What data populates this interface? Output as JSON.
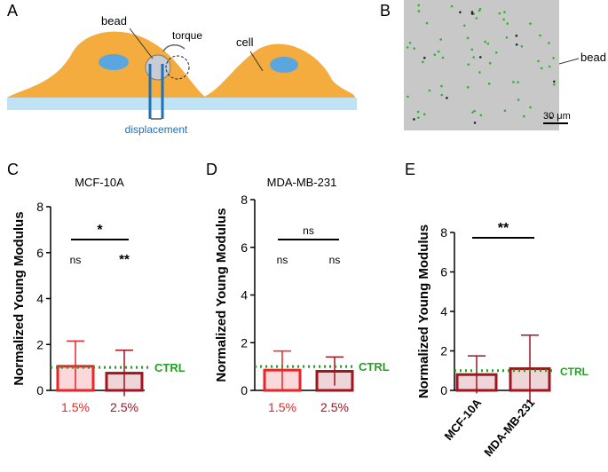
{
  "panel_a": {
    "label": "A",
    "bead": "bead",
    "torque": "torque",
    "cell": "cell",
    "displacement": "displacement"
  },
  "panel_b": {
    "label": "B",
    "bead": "bead",
    "scale": "30 μm"
  },
  "chart_data": [
    {
      "type": "bar",
      "panel": "C",
      "title": "MCF-10A",
      "y_label": "Normalized Young Modulus",
      "categories": [
        "1.5%",
        "2.5%"
      ],
      "values": [
        1.05,
        0.75
      ],
      "errors": [
        1.1,
        1.0
      ],
      "colors": [
        "#e8262a",
        "#a01520"
      ],
      "annotations": [
        "ns",
        "**"
      ],
      "bracket_label": "*",
      "reference_line": {
        "value": 1,
        "label": "CTRL",
        "color": "#22a022"
      },
      "ylim": [
        0,
        8
      ],
      "yticks": [
        0,
        2,
        4,
        6,
        8
      ]
    },
    {
      "type": "bar",
      "panel": "D",
      "title": "MDA-MB-231",
      "y_label": "Normalized Young Modulus",
      "categories": [
        "1.5%",
        "2.5%"
      ],
      "values": [
        0.85,
        0.8
      ],
      "errors": [
        0.8,
        0.6
      ],
      "colors": [
        "#e8262a",
        "#a01520"
      ],
      "annotations": [
        "ns",
        "ns"
      ],
      "bracket_label": "ns",
      "reference_line": {
        "value": 1,
        "label": "CTRL",
        "color": "#22a022"
      },
      "ylim": [
        0,
        8
      ],
      "yticks": [
        0,
        2,
        4,
        6,
        8
      ]
    },
    {
      "type": "bar",
      "panel": "E",
      "y_label": "Normalized Young Modulus",
      "categories": [
        "MCF-10A",
        "MDA-MB-231"
      ],
      "values": [
        0.8,
        1.1
      ],
      "errors": [
        0.95,
        1.7
      ],
      "colors": [
        "#a01520",
        "#a01520"
      ],
      "bracket_label": "**",
      "reference_line": {
        "value": 1,
        "label": "CTRL",
        "color": "#22a022"
      },
      "ylim": [
        0,
        8
      ],
      "yticks": [
        0,
        2,
        4,
        6,
        8
      ]
    }
  ]
}
